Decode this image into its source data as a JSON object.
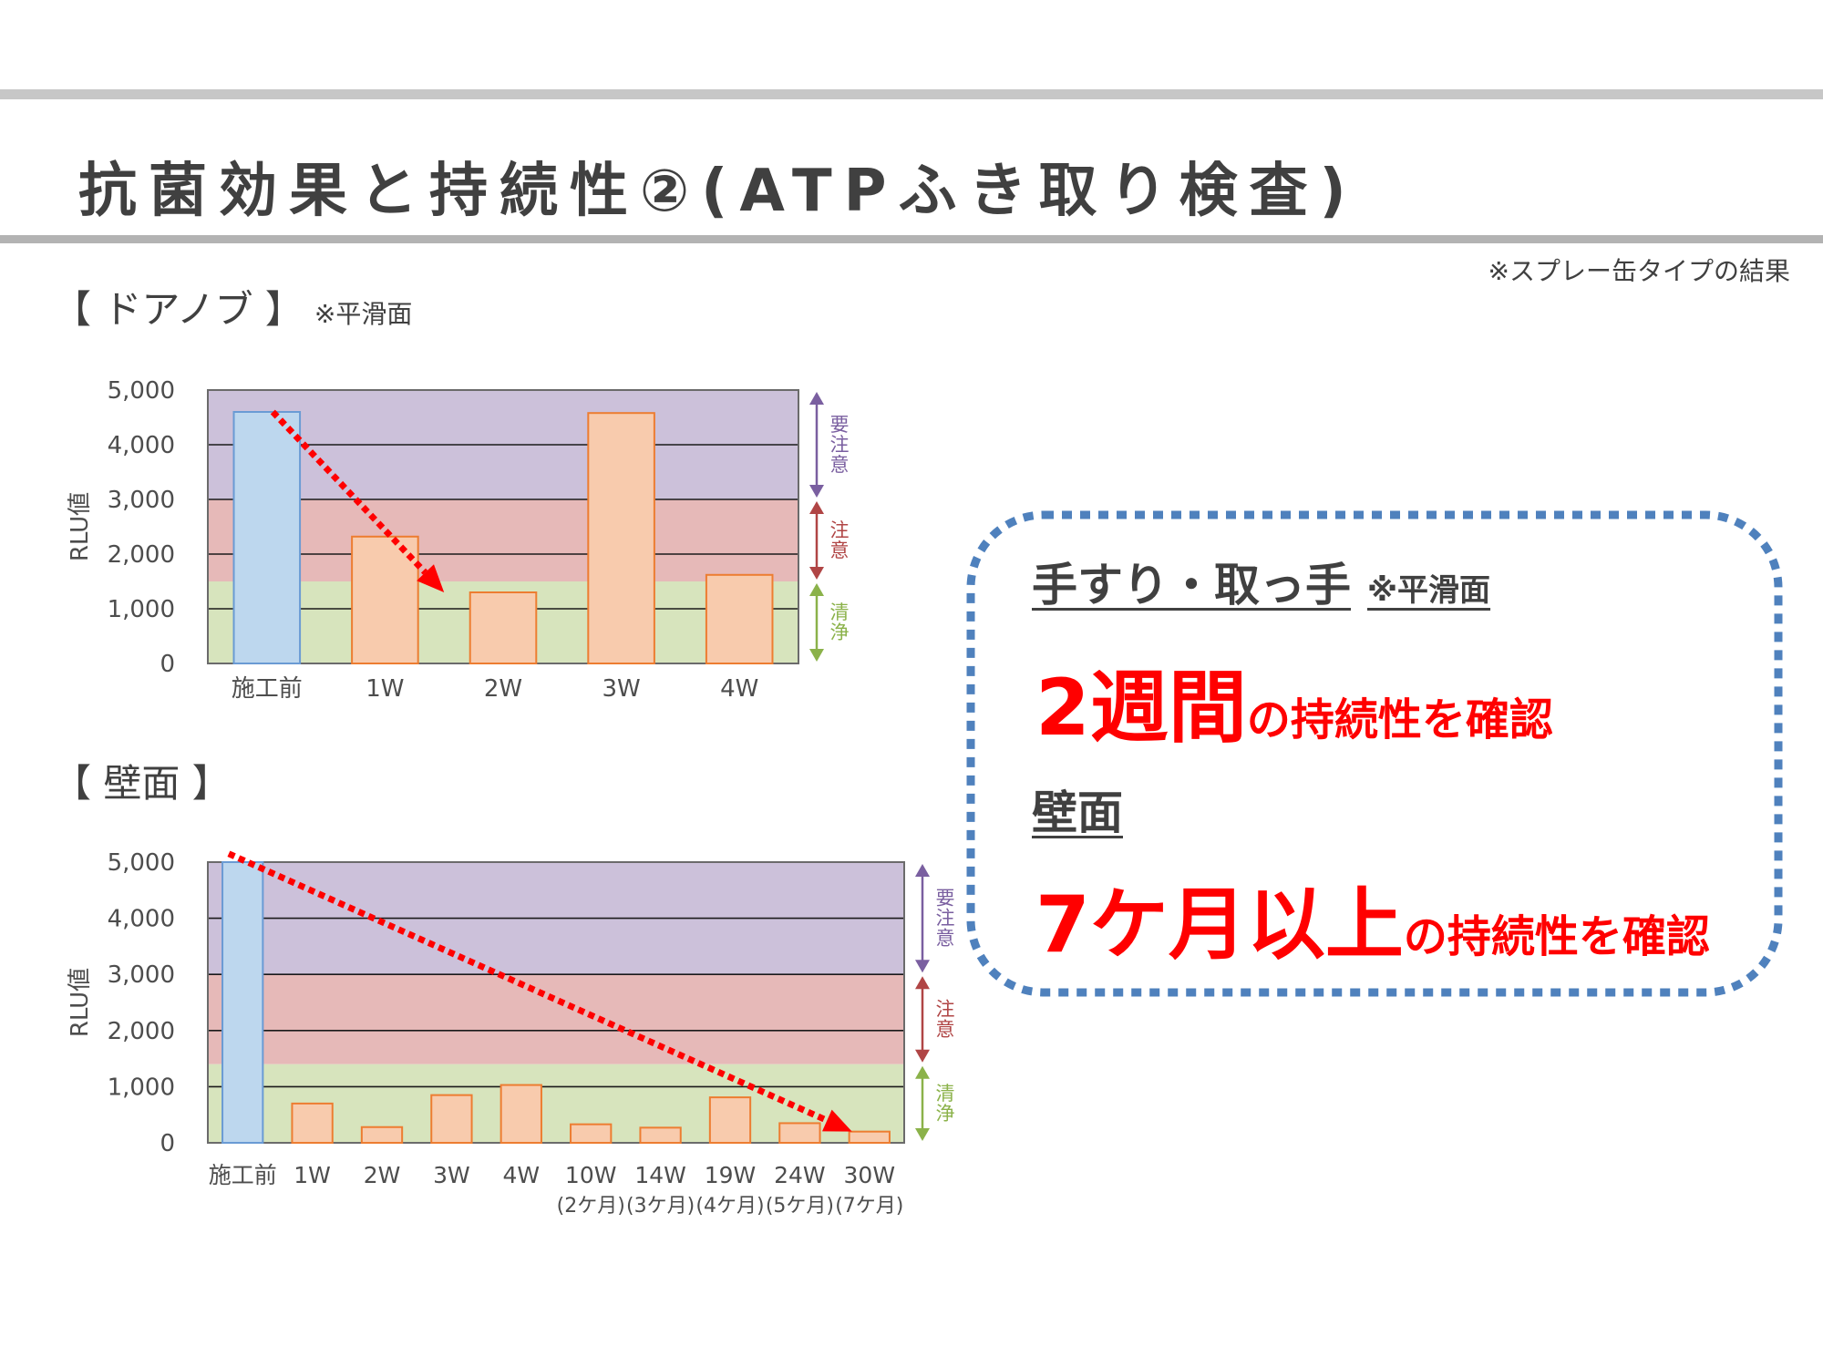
{
  "header": {
    "title": "抗菌効果と持続性②(ATPふき取り検査)",
    "note": "※スプレー缶タイプの結果"
  },
  "sections": {
    "door": {
      "label": "【 ドアノブ 】",
      "sub": "※平滑面"
    },
    "wall": {
      "label": "【 壁面 】"
    }
  },
  "zones": {
    "caution_high": "要注意",
    "caution": "注意",
    "clean": "清浄",
    "colors": {
      "caution_high": "#ccc1da",
      "caution": "#e6b9b8",
      "clean": "#d7e4bd",
      "arrow_high": "#7a5fa0",
      "arrow_caution": "#b04545",
      "arrow_clean": "#8bb24a"
    }
  },
  "chart_data": [
    {
      "type": "bar",
      "ylabel": "RLU値",
      "ylim": [
        0,
        5000
      ],
      "yticks": [
        "5,000",
        "4,000",
        "3,000",
        "2,000",
        "1,000",
        "0"
      ],
      "zones": [
        0,
        1500,
        3000,
        5000
      ],
      "categories": [
        "施工前",
        "1W",
        "2W",
        "3W",
        "4W"
      ],
      "values": [
        4600,
        2320,
        1300,
        4580,
        1620
      ],
      "bar_colors": [
        "#bdd7ee",
        "#f8cbad",
        "#f8cbad",
        "#f8cbad",
        "#f8cbad"
      ],
      "trend": {
        "from": 4600,
        "to": 1300,
        "from_index": 0.55,
        "to_index": 2.0
      }
    },
    {
      "type": "bar",
      "ylabel": "RLU値",
      "ylim": [
        0,
        5000
      ],
      "yticks": [
        "5,000",
        "4,000",
        "3,000",
        "2,000",
        "1,000",
        "0"
      ],
      "zones": [
        0,
        1400,
        3000,
        5000
      ],
      "categories": [
        "施工前",
        "1W",
        "2W",
        "3W",
        "4W",
        "10W",
        "14W",
        "19W",
        "24W",
        "30W"
      ],
      "subcategories": [
        "",
        "",
        "",
        "",
        "",
        "(2ケ月)",
        "(3ケ月)",
        "(4ケ月)",
        "(5ケ月)",
        "(7ケ月)"
      ],
      "values": [
        5000,
        700,
        280,
        850,
        1030,
        330,
        270,
        810,
        350,
        200
      ],
      "bar_colors": [
        "#bdd7ee",
        "#f8cbad",
        "#f8cbad",
        "#f8cbad",
        "#f8cbad",
        "#f8cbad",
        "#f8cbad",
        "#f8cbad",
        "#f8cbad",
        "#f8cbad"
      ],
      "trend": {
        "from": 5150,
        "to": 200,
        "from_index": 0.3,
        "to_index": 9.25
      }
    }
  ],
  "summary": {
    "door_head": "手すり・取っ手",
    "door_sub": "※平滑面",
    "door_big": "2週間",
    "door_tail": "の持続性を確認",
    "wall_head": "壁面",
    "wall_big": "7ケ月以上",
    "wall_tail": "の持続性を確認"
  }
}
